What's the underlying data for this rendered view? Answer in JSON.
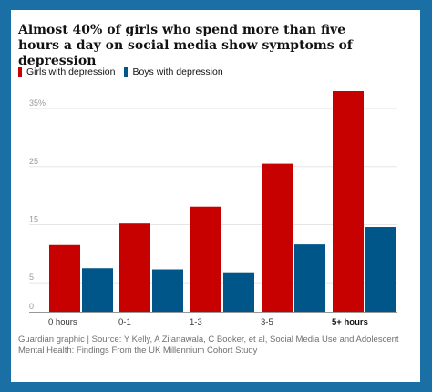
{
  "title": "Almost 40% of girls who spend more than five hours a day on social media show symptoms of depression",
  "source": "Guardian graphic | Source: Y Kelly, A Zilanawala, C Booker, et al, Social Media Use and Adolescent Mental Health: Findings From the UK Millennium Cohort Study",
  "colors": {
    "frame": "#1a6fa5",
    "girls": "#c70000",
    "boys": "#005689",
    "grid": "#e6e6e6",
    "axis": "#999999"
  },
  "chart_data": {
    "type": "bar",
    "title": "Almost 40% of girls who spend more than five hours a day on social media show symptoms of depression",
    "xlabel": "",
    "ylabel": "",
    "categories": [
      "0 hours",
      "0-1",
      "1-3",
      "3-5",
      "5+ hours"
    ],
    "highlight_category": "5+ hours",
    "series": [
      {
        "name": "Girls with depression",
        "color": "#c70000",
        "values": [
          11.5,
          15.2,
          18.1,
          25.5,
          38.0
        ]
      },
      {
        "name": "Boys with depression",
        "color": "#005689",
        "values": [
          7.5,
          7.3,
          6.8,
          11.6,
          14.6
        ]
      }
    ],
    "yticks": [
      0,
      5,
      15,
      25,
      35
    ],
    "ytick_labels": [
      "0",
      "5",
      "15",
      "25",
      "35%"
    ],
    "ylim": [
      0,
      38
    ],
    "grid": true,
    "legend_position": "top-left"
  }
}
